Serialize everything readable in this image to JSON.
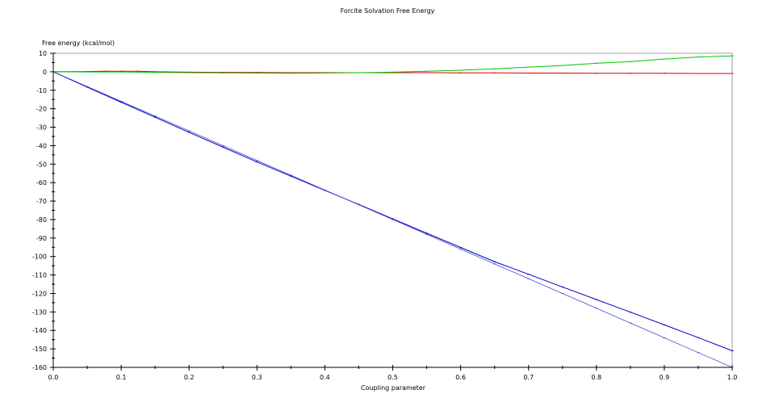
{
  "chart_data": {
    "type": "line",
    "title": "Forcite Solvation Free Energy",
    "ylabel": "Free energy (kcal/mol)",
    "xlabel": "Coupling parameter",
    "xlim": [
      0.0,
      1.0
    ],
    "ylim": [
      -160,
      10
    ],
    "x_ticks": [
      0.0,
      0.1,
      0.2,
      0.3,
      0.4,
      0.5,
      0.6,
      0.7,
      0.8,
      0.9,
      1.0
    ],
    "x_tick_labels": [
      "0.0",
      "0.1",
      "0.2",
      "0.3",
      "0.4",
      "0.5",
      "0.6",
      "0.7",
      "0.8",
      "0.9",
      "1.0"
    ],
    "y_ticks": [
      10,
      0,
      -10,
      -20,
      -30,
      -40,
      -50,
      -60,
      -70,
      -80,
      -90,
      -100,
      -110,
      -120,
      -130,
      -140,
      -150,
      -160
    ],
    "y_tick_labels": [
      "10",
      "0",
      "-10",
      "-20",
      "-30",
      "-40",
      "-50",
      "-60",
      "-70",
      "-80",
      "-90",
      "-100",
      "-110",
      "-120",
      "-130",
      "-140",
      "-150",
      "-160"
    ],
    "grid": false,
    "legend": "none",
    "series": [
      {
        "color": "#0000c8",
        "x": [
          0.0,
          0.05,
          0.1,
          0.15,
          0.2,
          0.25,
          0.3,
          0.35,
          0.4,
          0.45,
          0.5,
          0.55,
          0.6,
          0.65,
          0.7,
          0.75,
          0.8,
          0.85,
          0.9,
          0.95,
          1.0
        ],
        "y": [
          0,
          -8.3,
          -16.5,
          -24.6,
          -32.8,
          -40.8,
          -48.8,
          -56.5,
          -64.2,
          -71.8,
          -79.6,
          -87.4,
          -95.1,
          -102.8,
          -109.6,
          -116.5,
          -123.3,
          -130.1,
          -137.0,
          -143.9,
          -151.0
        ]
      },
      {
        "color": "#4b4bd7",
        "x": [
          0.0,
          0.05,
          0.1,
          0.15,
          0.2,
          0.25,
          0.3,
          0.35,
          0.4,
          0.45,
          0.5,
          0.55,
          0.6,
          0.65,
          0.7,
          0.75,
          0.8,
          0.85,
          0.9,
          0.95,
          1.0
        ],
        "y": [
          0,
          -8.0,
          -16.0,
          -24.0,
          -32.0,
          -40.0,
          -48.0,
          -56.0,
          -64.0,
          -72.0,
          -80.0,
          -88.0,
          -96.0,
          -104.0,
          -112.0,
          -120.0,
          -128.0,
          -136.0,
          -144.0,
          -152.0,
          -160.0
        ]
      },
      {
        "color": "#d70000",
        "x": [
          0.0,
          0.05,
          0.075,
          0.1,
          0.125,
          0.15,
          0.2,
          0.25,
          0.3,
          0.35,
          0.4,
          0.45,
          0.5,
          0.55,
          0.6,
          0.65,
          0.7,
          0.75,
          0.8,
          0.85,
          0.9,
          0.95,
          1.0
        ],
        "y": [
          0,
          0.1,
          0.3,
          0.3,
          0.3,
          0.0,
          -0.2,
          -0.3,
          -0.4,
          -0.5,
          -0.5,
          -0.5,
          -0.5,
          -0.5,
          -0.6,
          -0.6,
          -0.7,
          -0.7,
          -0.8,
          -0.8,
          -0.8,
          -0.9,
          -0.9
        ]
      },
      {
        "color": "#00c800",
        "x": [
          0.0,
          0.05,
          0.1,
          0.15,
          0.2,
          0.25,
          0.3,
          0.35,
          0.4,
          0.45,
          0.5,
          0.55,
          0.6,
          0.65,
          0.7,
          0.75,
          0.8,
          0.85,
          0.9,
          0.95,
          1.0
        ],
        "y": [
          0,
          -0.1,
          -0.1,
          -0.3,
          -0.5,
          -0.6,
          -0.7,
          -0.8,
          -0.7,
          -0.5,
          -0.2,
          0.3,
          0.8,
          1.6,
          2.5,
          3.4,
          4.6,
          5.5,
          6.9,
          8.0,
          8.6
        ]
      }
    ]
  }
}
